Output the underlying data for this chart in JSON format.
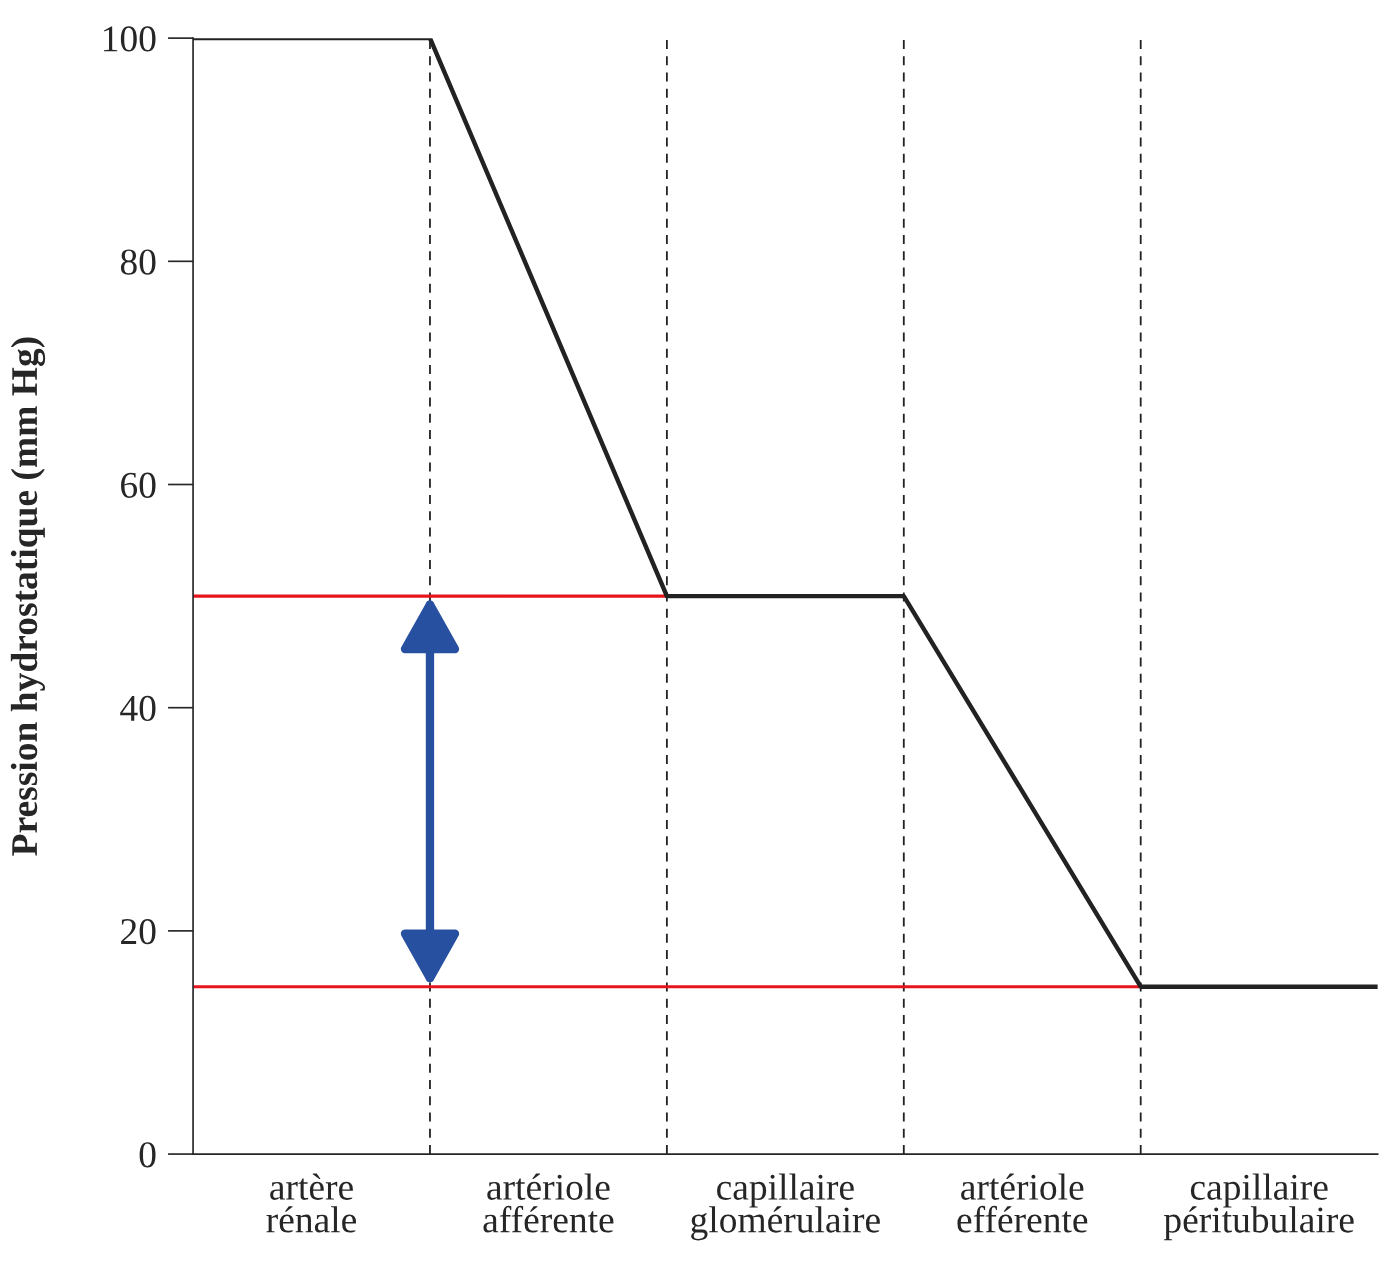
{
  "chart_data": {
    "type": "line",
    "ylabel": "Pression hydrostatique (mm Hg)",
    "categories": [
      null,
      "artère\nrénale",
      null,
      "artériole\nafférente",
      null,
      "capillaire\nglomérulaire",
      null,
      "artériole\nefférente",
      null,
      "capillaire\npéritubulaire",
      null
    ],
    "series": [
      {
        "color": "#222222",
        "values": [
          100,
          null,
          100,
          null,
          50,
          null,
          50,
          null,
          15,
          null,
          15
        ]
      },
      {
        "color": "#e8141c",
        "values": [
          50,
          null,
          50,
          null,
          50,
          null,
          null,
          null,
          null,
          null,
          null
        ]
      },
      {
        "color": "#e8141c",
        "values": [
          15,
          null,
          15,
          null,
          15,
          null,
          15,
          null,
          15,
          null,
          null
        ]
      }
    ],
    "ylim": [
      0,
      100
    ],
    "yticks": [
      0,
      20,
      40,
      60,
      80,
      100
    ],
    "grid": false,
    "legend": false,
    "marker": "none",
    "line_style": "solid"
  }
}
